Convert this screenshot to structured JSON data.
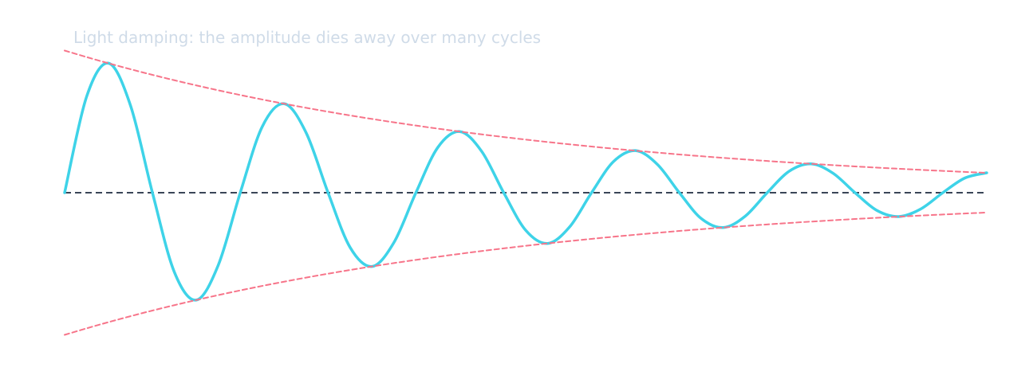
{
  "chart_data": {
    "type": "line",
    "title": "Light damping: the amplitude dies away over many cycles",
    "x": [
      0,
      0.25,
      0.5,
      0.75,
      1,
      1.25,
      1.5,
      1.75,
      2,
      2.25,
      2.5,
      2.75,
      3,
      3.25,
      3.5,
      3.75,
      4,
      4.25,
      4.5,
      4.75,
      5,
      5.25,
      5.5,
      5.75,
      6,
      6.25,
      6.5,
      6.75,
      7,
      7.25,
      7.5,
      7.75,
      8,
      8.25,
      8.5,
      8.75,
      9,
      9.25,
      9.5,
      9.75,
      10,
      10.25,
      10.5
    ],
    "series": [
      {
        "color": "#3ed3e8",
        "style": "solid",
        "width": 3.5,
        "values": [
          0,
          0.675,
          0.911,
          0.614,
          0,
          -0.559,
          -0.755,
          -0.509,
          0,
          0.464,
          0.626,
          0.422,
          0,
          -0.384,
          -0.519,
          -0.35,
          0,
          0.319,
          0.43,
          0.29,
          0,
          -0.264,
          -0.357,
          -0.241,
          0,
          0.219,
          0.296,
          0.199,
          0,
          -0.182,
          -0.245,
          -0.165,
          0,
          0.151,
          0.203,
          0.137,
          0,
          -0.125,
          -0.168,
          -0.114,
          0,
          0.103,
          0.14
        ]
      },
      {
        "color": "#f7758a",
        "style": "dashed",
        "width": 2,
        "values": [
          1,
          0.9542,
          0.9105,
          0.8688,
          0.829,
          0.7911,
          0.7548,
          0.7203,
          0.6873,
          0.6558,
          0.6258,
          0.5971,
          0.5698,
          0.5437,
          0.5188,
          0.495,
          0.4724,
          0.4507,
          0.4301,
          0.4104,
          0.3916,
          0.3737,
          0.3566,
          0.3402,
          0.3247,
          0.3098,
          0.2956,
          0.2821,
          0.2691,
          0.2568,
          0.2451,
          0.2338,
          0.2231,
          0.2129,
          0.2032,
          0.1939,
          0.185,
          0.1765,
          0.1684,
          0.1607,
          0.1534,
          0.1463,
          0.1396
        ]
      },
      {
        "color": "#f7758a",
        "style": "dashed",
        "width": 2,
        "values": [
          -1,
          -0.9542,
          -0.9105,
          -0.8688,
          -0.829,
          -0.7911,
          -0.7548,
          -0.7203,
          -0.6873,
          -0.6558,
          -0.6258,
          -0.5971,
          -0.5698,
          -0.5437,
          -0.5188,
          -0.495,
          -0.4724,
          -0.4507,
          -0.4301,
          -0.4104,
          -0.3916,
          -0.3737,
          -0.3566,
          -0.3402,
          -0.3247,
          -0.3098,
          -0.2956,
          -0.2821,
          -0.2691,
          -0.2568,
          -0.2451,
          -0.2338,
          -0.2231,
          -0.2129,
          -0.2032,
          -0.1939,
          -0.185,
          -0.1765,
          -0.1684,
          -0.1607,
          -0.1534,
          -0.1463,
          -0.1396
        ]
      }
    ],
    "xlim": [
      0,
      10.5
    ],
    "ylim": [
      -1.35,
      1.35
    ],
    "zero_line": true,
    "zero_line_color": "#3a4657"
  }
}
